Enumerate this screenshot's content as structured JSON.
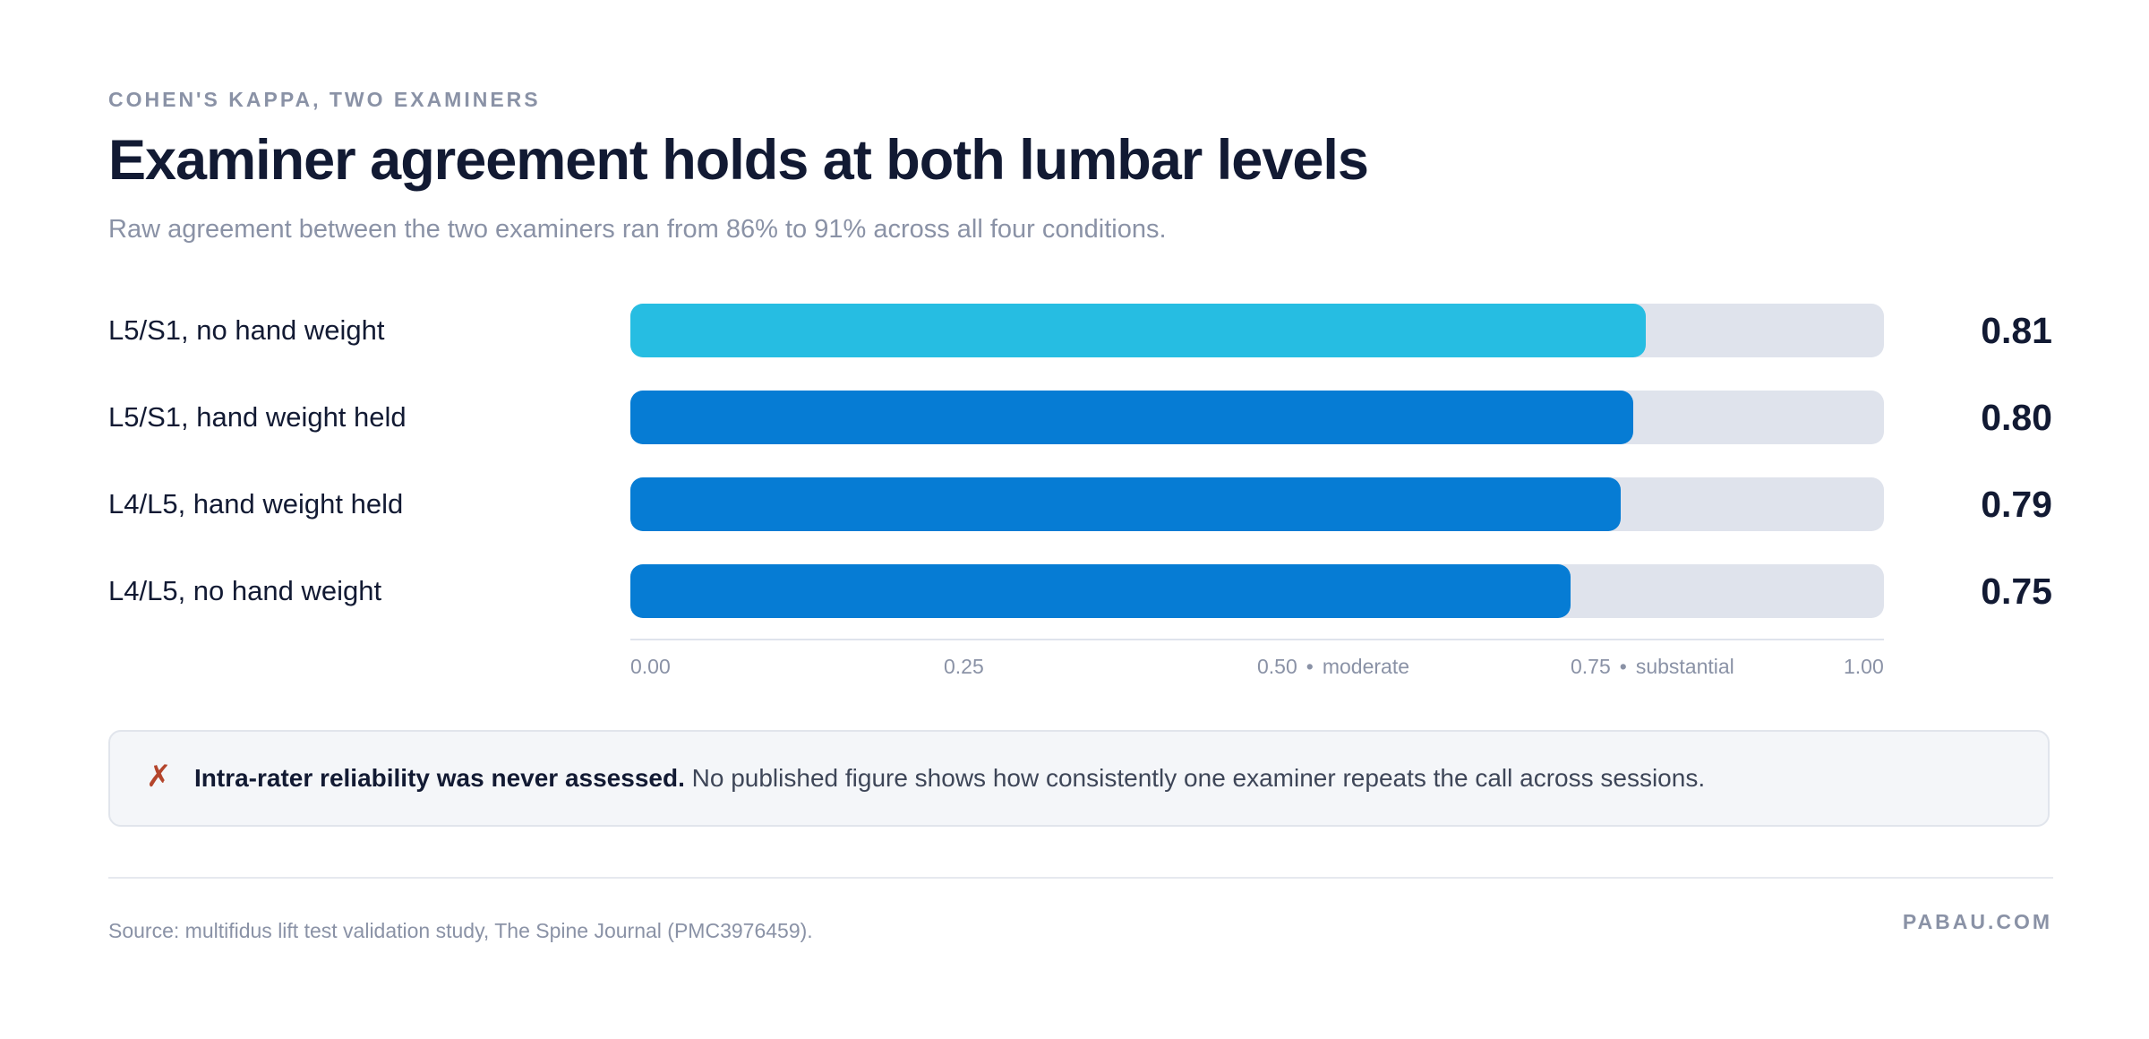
{
  "header": {
    "eyebrow": "COHEN'S KAPPA, TWO EXAMINERS",
    "title": "Examiner agreement holds at both lumbar levels",
    "subtitle": "Raw agreement between the two examiners ran from 86% to 91% across all four conditions."
  },
  "chart_data": {
    "type": "bar",
    "orientation": "horizontal",
    "xlim": [
      0,
      1
    ],
    "grid": false,
    "categories": [
      "L5/S1, no hand weight",
      "L5/S1, hand weight held",
      "L4/L5, hand weight held",
      "L4/L5, no hand weight"
    ],
    "values": [
      0.81,
      0.8,
      0.79,
      0.75
    ],
    "value_labels": [
      "0.81",
      "0.80",
      "0.79",
      "0.75"
    ],
    "bar_colors": [
      "#26bde2",
      "#067cd4",
      "#067cd4",
      "#067cd4"
    ],
    "track_color": "#dfe3ec",
    "ticks": [
      {
        "value": 0,
        "label": "0.00",
        "note": ""
      },
      {
        "value": 0.25,
        "label": "0.25",
        "note": ""
      },
      {
        "value": 0.5,
        "label": "0.50",
        "note": "moderate"
      },
      {
        "value": 0.75,
        "label": "0.75",
        "note": "substantial"
      },
      {
        "value": 1,
        "label": "1.00",
        "note": ""
      }
    ],
    "tick_separator": "•"
  },
  "note": {
    "icon": "cross-mark-icon",
    "glyph": "✗",
    "bold": "Intra-rater reliability was never assessed.",
    "text": " No published figure shows how consistently one examiner repeats the call across sessions."
  },
  "footer": {
    "source": "Source: multifidus lift test validation study, The Spine Journal (PMC3976459).",
    "brand": "PABAU.COM"
  }
}
